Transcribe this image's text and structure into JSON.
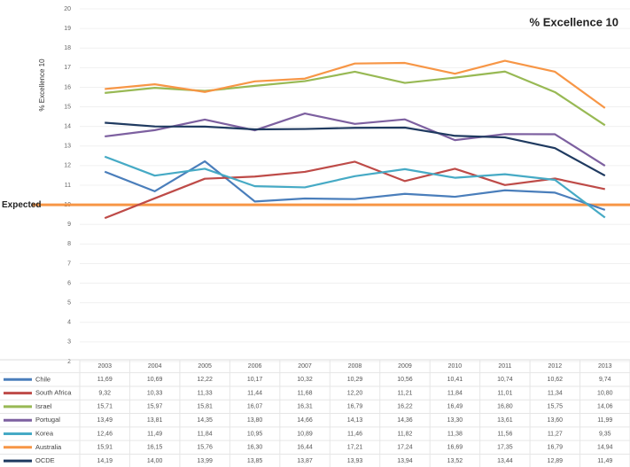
{
  "chart_data": {
    "type": "line",
    "title": "% Excellence 10",
    "y_label": "% Excellence 10",
    "categories": [
      "2003",
      "2004",
      "2005",
      "2006",
      "2007",
      "2008",
      "2009",
      "2010",
      "2011",
      "2012",
      "2013"
    ],
    "ylim": [
      2,
      20
    ],
    "yticks": [
      2,
      3,
      4,
      5,
      6,
      7,
      8,
      9,
      10,
      11,
      12,
      13,
      14,
      15,
      16,
      17,
      18,
      19,
      20
    ],
    "grid": true,
    "reference_line": {
      "label": "Expected",
      "value": 10,
      "color": "#f79646"
    },
    "series": [
      {
        "name": "Chile",
        "color": "#4a7ebb",
        "values": [
          11.69,
          10.69,
          12.22,
          10.17,
          10.32,
          10.29,
          10.56,
          10.41,
          10.74,
          10.62,
          9.74
        ],
        "value_labels": [
          "11,69",
          "10,69",
          "12,22",
          "10,17",
          "10,32",
          "10,29",
          "10,56",
          "10,41",
          "10,74",
          "10,62",
          "9,74"
        ]
      },
      {
        "name": "South Africa",
        "color": "#be4b48",
        "values": [
          9.32,
          10.33,
          11.33,
          11.44,
          11.68,
          12.2,
          11.21,
          11.84,
          11.01,
          11.34,
          10.8
        ],
        "value_labels": [
          "9,32",
          "10,33",
          "11,33",
          "11,44",
          "11,68",
          "12,20",
          "11,21",
          "11,84",
          "11,01",
          "11,34",
          "10,80"
        ]
      },
      {
        "name": "Israel",
        "color": "#98b954",
        "values": [
          15.71,
          15.97,
          15.81,
          16.07,
          16.31,
          16.79,
          16.22,
          16.49,
          16.8,
          15.75,
          14.06
        ],
        "value_labels": [
          "15,71",
          "15,97",
          "15,81",
          "16,07",
          "16,31",
          "16,79",
          "16,22",
          "16,49",
          "16,80",
          "15,75",
          "14,06"
        ]
      },
      {
        "name": "Portugal",
        "color": "#7d60a0",
        "values": [
          13.49,
          13.81,
          14.35,
          13.8,
          14.66,
          14.13,
          14.36,
          13.3,
          13.61,
          13.6,
          11.99
        ],
        "value_labels": [
          "13,49",
          "13,81",
          "14,35",
          "13,80",
          "14,66",
          "14,13",
          "14,36",
          "13,30",
          "13,61",
          "13,60",
          "11,99"
        ]
      },
      {
        "name": "Korea",
        "color": "#46aac5",
        "values": [
          12.46,
          11.49,
          11.84,
          10.95,
          10.89,
          11.46,
          11.82,
          11.38,
          11.56,
          11.27,
          9.35
        ],
        "value_labels": [
          "12,46",
          "11,49",
          "11,84",
          "10,95",
          "10,89",
          "11,46",
          "11,82",
          "11,38",
          "11,56",
          "11,27",
          "9,35"
        ]
      },
      {
        "name": "Australia",
        "color": "#f79646",
        "values": [
          15.91,
          16.15,
          15.76,
          16.3,
          16.44,
          17.21,
          17.24,
          16.69,
          17.35,
          16.79,
          14.94
        ],
        "value_labels": [
          "15,91",
          "16,15",
          "15,76",
          "16,30",
          "16,44",
          "17,21",
          "17,24",
          "16,69",
          "17,35",
          "16,79",
          "14,94"
        ]
      },
      {
        "name": "OCDE",
        "color": "#1f3a60",
        "values": [
          14.19,
          14.0,
          13.99,
          13.85,
          13.87,
          13.93,
          13.94,
          13.52,
          13.44,
          12.89,
          11.49
        ],
        "value_labels": [
          "14,19",
          "14,00",
          "13,99",
          "13,85",
          "13,87",
          "13,93",
          "13,94",
          "13,52",
          "13,44",
          "12,89",
          "11,49"
        ]
      }
    ]
  }
}
